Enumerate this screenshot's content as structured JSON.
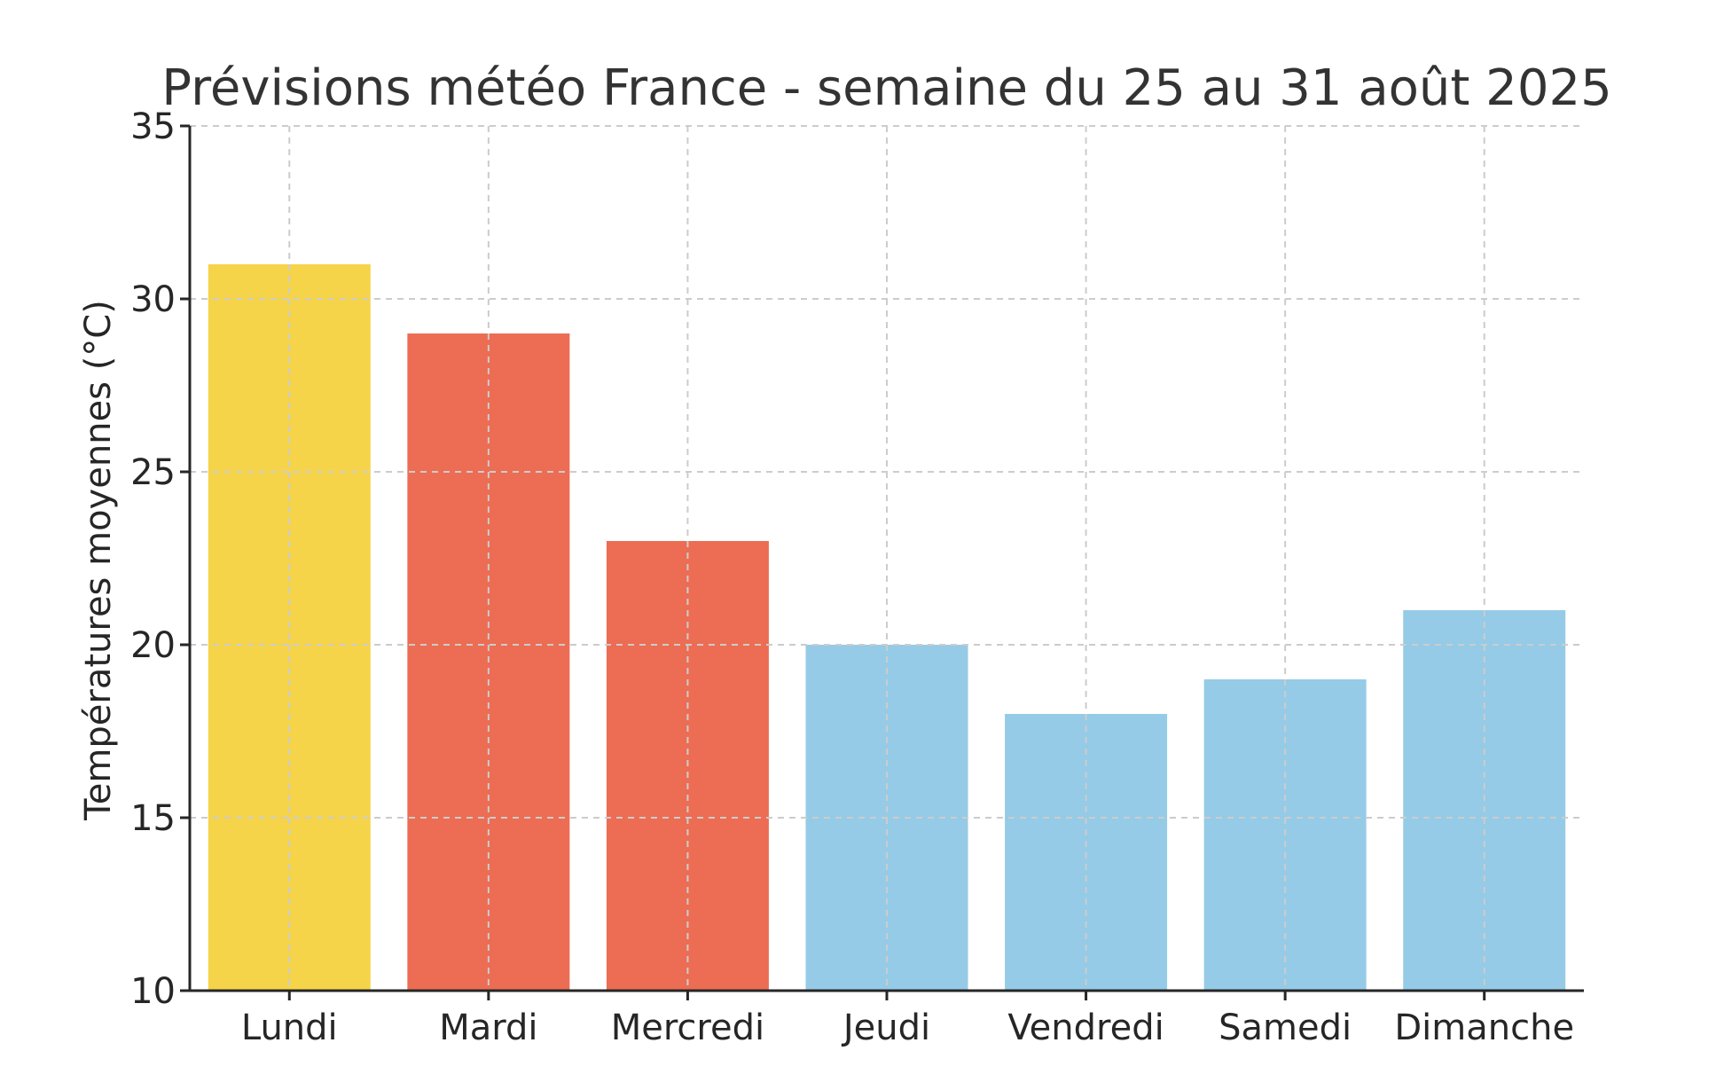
{
  "chart_data": {
    "type": "bar",
    "title": "Prévisions météo France - semaine du 25 au 31 août 2025",
    "xlabel": "",
    "ylabel": "Températures moyennes (°C)",
    "categories": [
      "Lundi",
      "Mardi",
      "Mercredi",
      "Jeudi",
      "Vendredi",
      "Samedi",
      "Dimanche"
    ],
    "values": [
      31,
      29,
      23,
      20,
      18,
      19,
      21
    ],
    "bar_colors": [
      "#f6d449",
      "#ec6d53",
      "#ec6d53",
      "#95cbe6",
      "#95cbe6",
      "#95cbe6",
      "#95cbe6"
    ],
    "ylim": [
      10,
      35
    ],
    "yticks": [
      10,
      15,
      20,
      25,
      30,
      35
    ],
    "grid": true,
    "legend": "none"
  }
}
